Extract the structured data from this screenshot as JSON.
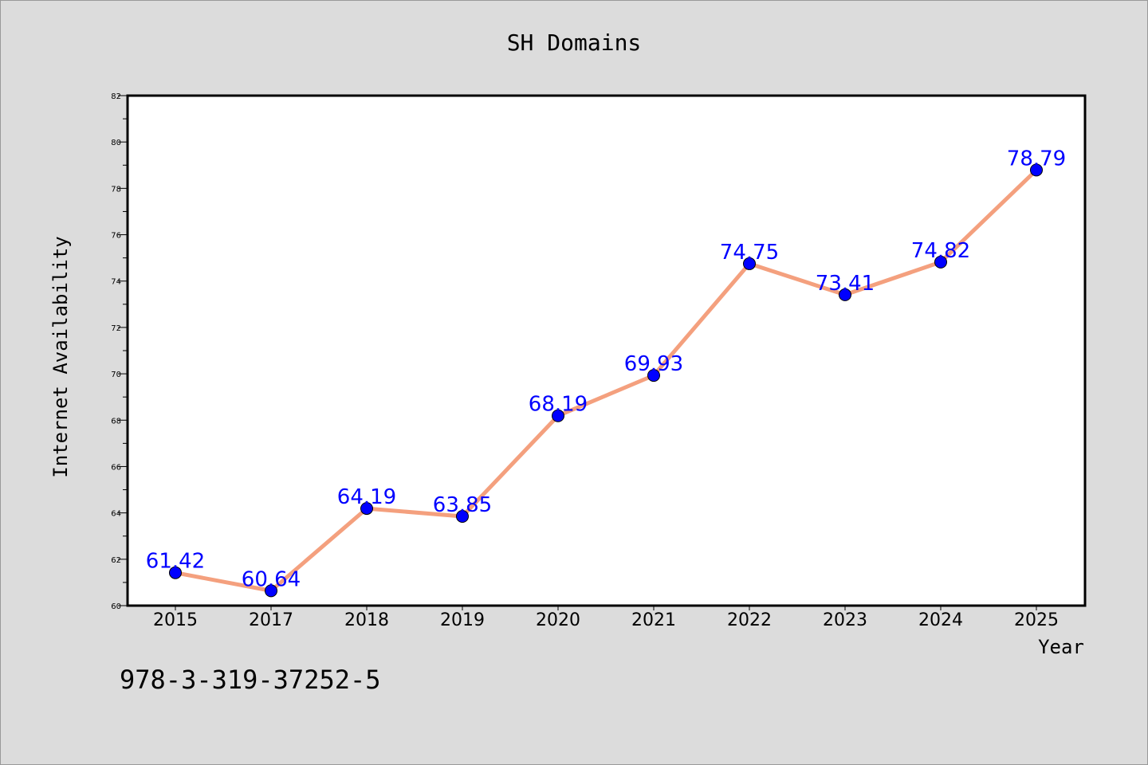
{
  "chart_data": {
    "type": "line",
    "title": "SH Domains",
    "xlabel": "Year",
    "ylabel": "Internet Availability",
    "categories": [
      "2015",
      "2017",
      "2018",
      "2019",
      "2020",
      "2021",
      "2022",
      "2023",
      "2024",
      "2025"
    ],
    "series": [
      {
        "values": [
          61.42,
          60.64,
          64.19,
          63.85,
          68.19,
          69.93,
          74.75,
          73.41,
          74.82,
          78.79
        ],
        "data_labels": [
          "61.42",
          "60.64",
          "64.19",
          "63.85",
          "68.19",
          "69.93",
          "74.75",
          "73.41",
          "74.82",
          "78.79"
        ],
        "line_color": "#f4a07e",
        "marker_color": "#0000ff"
      }
    ],
    "ylim": [
      60,
      82
    ],
    "yticks": [
      "60",
      "62",
      "64",
      "66",
      "68",
      "70",
      "72",
      "74",
      "76",
      "78",
      "80",
      "82"
    ],
    "grid": false,
    "legend": "none"
  },
  "annotation": "978-3-319-37252-5",
  "colors": {
    "background": "#dcdcdc",
    "plot_area": "#ffffff",
    "line": "#f4a07e",
    "marker": "#0000ff",
    "data_label": "#0000ff"
  }
}
